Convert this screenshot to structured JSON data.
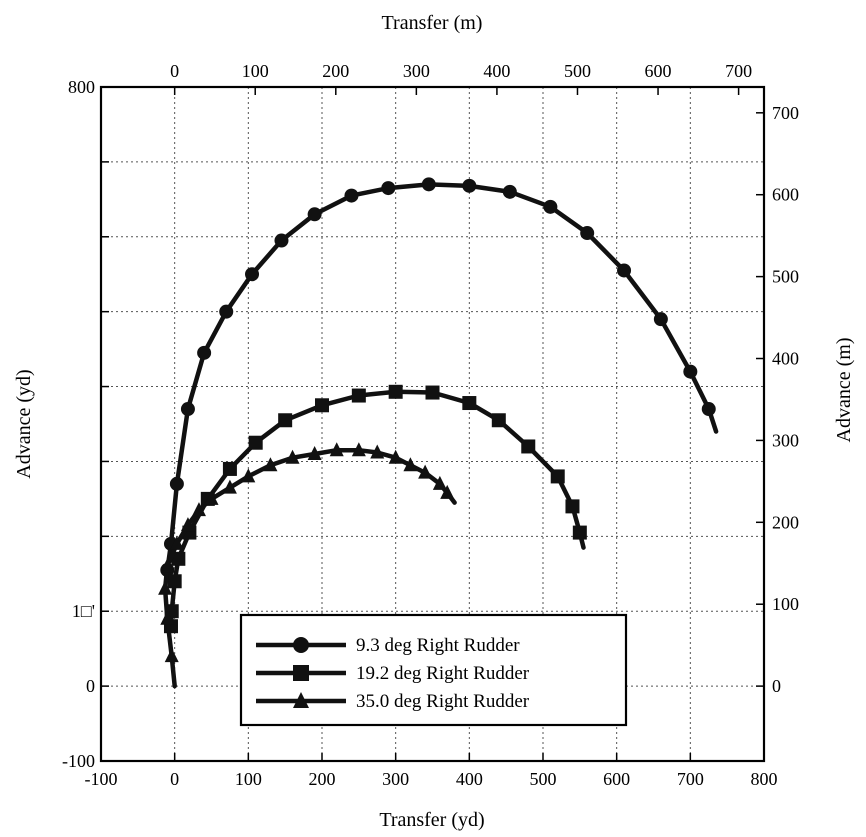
{
  "chart_data": {
    "type": "line",
    "title": "",
    "xlabel": "Transfer (yd)",
    "ylabel": "Advance (yd)",
    "x2label": "Transfer (m)",
    "y2label": "Advance (m)",
    "xlim": [
      -100,
      800
    ],
    "ylim": [
      -100,
      800
    ],
    "x2lim_m": [
      -91.44,
      731.52
    ],
    "y2lim_m": [
      -91.44,
      731.52
    ],
    "grid": true,
    "legend_position": "bottom-center",
    "x_ticks": [
      "-100",
      "0",
      "100",
      "200",
      "300",
      "400",
      "500",
      "600",
      "700",
      "800"
    ],
    "y_ticks": [
      "-100",
      "0",
      "1□'",
      "",
      "",
      "",
      "",
      "",
      "",
      "800"
    ],
    "x2_ticks": [
      "0",
      "100",
      "200",
      "300",
      "400",
      "500",
      "600",
      "700"
    ],
    "y2_ticks": [
      "0",
      "100",
      "200",
      "300",
      "400",
      "500",
      "600",
      "700"
    ],
    "series": [
      {
        "name": "9.3 deg Right Rudder",
        "marker": "circle",
        "x": [
          -10,
          -5,
          3,
          18,
          40,
          70,
          105,
          145,
          190,
          240,
          290,
          345,
          400,
          455,
          510,
          560,
          610,
          660,
          700,
          725,
          735
        ],
        "y": [
          155,
          190,
          270,
          370,
          445,
          500,
          550,
          595,
          630,
          655,
          665,
          670,
          668,
          660,
          640,
          605,
          555,
          490,
          420,
          370,
          340
        ]
      },
      {
        "name": "19.2 deg Right Rudder",
        "marker": "square",
        "x": [
          -5,
          -4,
          0,
          5,
          20,
          45,
          75,
          110,
          150,
          200,
          250,
          300,
          350,
          400,
          440,
          480,
          520,
          540,
          550,
          555
        ],
        "y": [
          80,
          100,
          140,
          170,
          205,
          250,
          290,
          325,
          355,
          375,
          388,
          393,
          392,
          378,
          355,
          320,
          280,
          240,
          205,
          185
        ]
      },
      {
        "name": "35.0 deg Right Rudder",
        "marker": "triangle",
        "x": [
          0,
          -4,
          -10,
          -13,
          -10,
          3,
          18,
          33,
          50,
          75,
          100,
          130,
          160,
          190,
          220,
          250,
          275,
          300,
          320,
          340,
          360,
          370,
          380
        ],
        "y": [
          0,
          40,
          90,
          130,
          160,
          190,
          215,
          235,
          250,
          265,
          280,
          295,
          305,
          310,
          315,
          315,
          312,
          305,
          295,
          285,
          270,
          258,
          245
        ]
      }
    ]
  }
}
